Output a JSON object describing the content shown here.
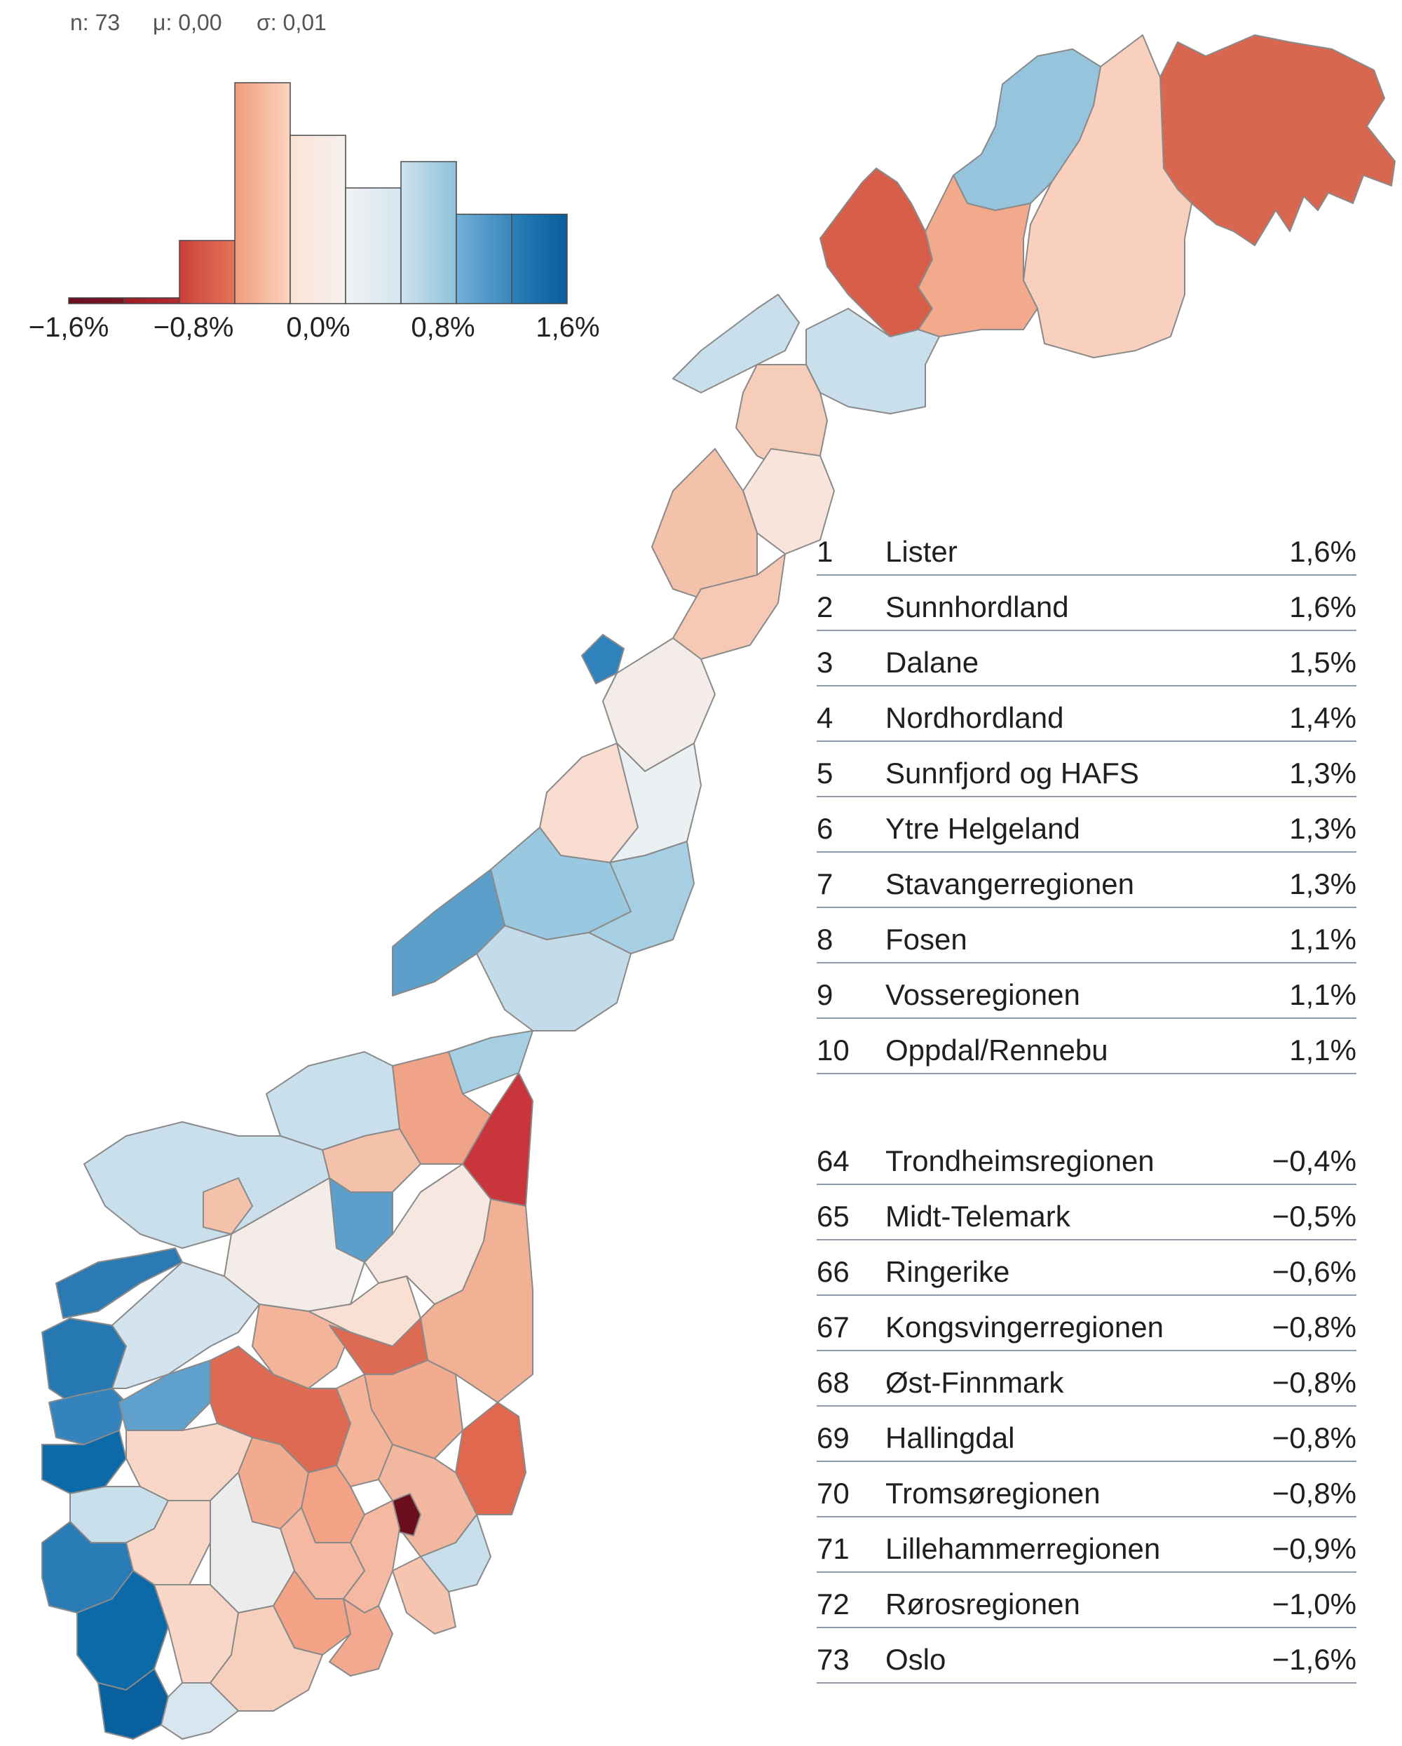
{
  "histogram": {
    "stats": {
      "n": "n: 73",
      "mu": "μ: 0,00",
      "sigma": "σ: 0,01"
    },
    "bins": [
      {
        "height": 0.22,
        "c0": "#6b0f1f",
        "c1": "#7a1224"
      },
      {
        "height": 0.22,
        "c0": "#9c1b26",
        "c1": "#b82a2e"
      },
      {
        "height": 2.4,
        "c0": "#c9413a",
        "c1": "#e5735a"
      },
      {
        "height": 8.4,
        "c0": "#f09b7d",
        "c1": "#fbd4c0"
      },
      {
        "height": 6.4,
        "c0": "#fbe3d6",
        "c1": "#f5f0ee"
      },
      {
        "height": 4.4,
        "c0": "#f1f1f3",
        "c1": "#d6e6f0"
      },
      {
        "height": 5.4,
        "c0": "#cfe3ef",
        "c1": "#8fc0dc"
      },
      {
        "height": 3.4,
        "c0": "#74b0d6",
        "c1": "#3786bd"
      },
      {
        "height": 3.4,
        "c0": "#2c7fb8",
        "c1": "#0a5d9b"
      }
    ],
    "tick_labels": [
      "−1,6%",
      "−0,8%",
      "0,0%",
      "0,8%",
      "1,6%"
    ]
  },
  "top_ranking": [
    {
      "rank": "1",
      "name": "Lister",
      "value": "1,6%"
    },
    {
      "rank": "2",
      "name": "Sunnhordland",
      "value": "1,6%"
    },
    {
      "rank": "3",
      "name": "Dalane",
      "value": "1,5%"
    },
    {
      "rank": "4",
      "name": "Nordhordland",
      "value": "1,4%"
    },
    {
      "rank": "5",
      "name": "Sunnfjord og HAFS",
      "value": "1,3%"
    },
    {
      "rank": "6",
      "name": "Ytre Helgeland",
      "value": "1,3%"
    },
    {
      "rank": "7",
      "name": "Stavangerregionen",
      "value": "1,3%"
    },
    {
      "rank": "8",
      "name": "Fosen",
      "value": "1,1%"
    },
    {
      "rank": "9",
      "name": "Vosseregionen",
      "value": "1,1%"
    },
    {
      "rank": "10",
      "name": "Oppdal/Rennebu",
      "value": "1,1%"
    }
  ],
  "bottom_ranking": [
    {
      "rank": "64",
      "name": "Trondheimsregionen",
      "value": "−0,4%"
    },
    {
      "rank": "65",
      "name": "Midt-Telemark",
      "value": "−0,5%"
    },
    {
      "rank": "66",
      "name": "Ringerike",
      "value": "−0,6%"
    },
    {
      "rank": "67",
      "name": "Kongsvingerregionen",
      "value": "−0,8%"
    },
    {
      "rank": "68",
      "name": "Øst-Finnmark",
      "value": "−0,8%"
    },
    {
      "rank": "69",
      "name": "Hallingdal",
      "value": "−0,8%"
    },
    {
      "rank": "70",
      "name": "Tromsøregionen",
      "value": "−0,8%"
    },
    {
      "rank": "71",
      "name": "Lillehammerregionen",
      "value": "−0,9%"
    },
    {
      "rank": "72",
      "name": "Rørosregionen",
      "value": "−1,0%"
    },
    {
      "rank": "73",
      "name": "Oslo",
      "value": "−1,6%"
    }
  ],
  "colors": {
    "strong_negative": "#6b0f1f",
    "negative": "#d9604a",
    "light_negative": "#f6c7b2",
    "neutral": "#f4ece8",
    "light_positive": "#c9e0ec",
    "positive": "#5fa3cf",
    "strong_positive": "#08609e",
    "border": "#8a8a8a",
    "rule": "#8e9aa8"
  }
}
